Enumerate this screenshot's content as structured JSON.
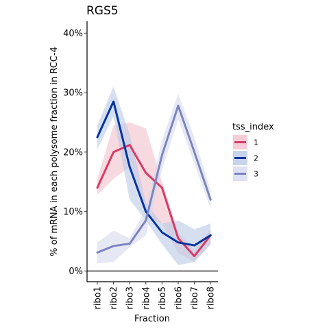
{
  "chart_data": {
    "type": "line",
    "title": "RGS5",
    "xlabel": "Fraction",
    "ylabel": "% of mRNA in each polysome fraction in RCC-4",
    "categories": [
      "ribo1",
      "ribo2",
      "ribo3",
      "ribo4",
      "ribo5",
      "ribo6",
      "ribo7",
      "ribo8"
    ],
    "y_ticks": [
      0,
      10,
      20,
      30,
      40
    ],
    "y_tick_labels": [
      "0%",
      "10%",
      "20%",
      "30%",
      "40%"
    ],
    "ylim": [
      -1.8,
      42
    ],
    "grid": false,
    "legend": {
      "title": "tss_index",
      "position": "right"
    },
    "series": [
      {
        "name": "1",
        "color": "#d63b66",
        "band_color": "#f2c0cc",
        "values": [
          14.0,
          20.0,
          21.2,
          16.5,
          14.0,
          5.5,
          2.5,
          6.0
        ],
        "lower": [
          12.8,
          15.5,
          17.5,
          9.0,
          8.0,
          3.0,
          1.5,
          4.5
        ],
        "upper": [
          15.5,
          24.5,
          25.0,
          24.0,
          15.0,
          6.5,
          3.5,
          7.0
        ]
      },
      {
        "name": "2",
        "color": "#0034a0",
        "band_color": "#b9c9e6",
        "values": [
          22.5,
          28.5,
          17.5,
          10.0,
          6.5,
          4.8,
          4.3,
          6.0
        ],
        "lower": [
          20.5,
          26.0,
          12.0,
          8.5,
          4.5,
          1.0,
          1.5,
          4.5
        ],
        "upper": [
          24.5,
          31.0,
          23.0,
          11.5,
          8.0,
          8.5,
          7.0,
          8.0
        ]
      },
      {
        "name": "3",
        "color": "#7b84c0",
        "band_color": "#d6daed",
        "values": [
          3.1,
          4.2,
          4.6,
          8.5,
          19.5,
          27.8,
          20.0,
          12.0
        ],
        "lower": [
          1.3,
          1.5,
          4.0,
          6.0,
          17.0,
          25.5,
          18.0,
          10.5
        ],
        "upper": [
          4.8,
          6.8,
          5.5,
          10.5,
          22.0,
          29.8,
          22.5,
          13.5
        ]
      }
    ]
  }
}
